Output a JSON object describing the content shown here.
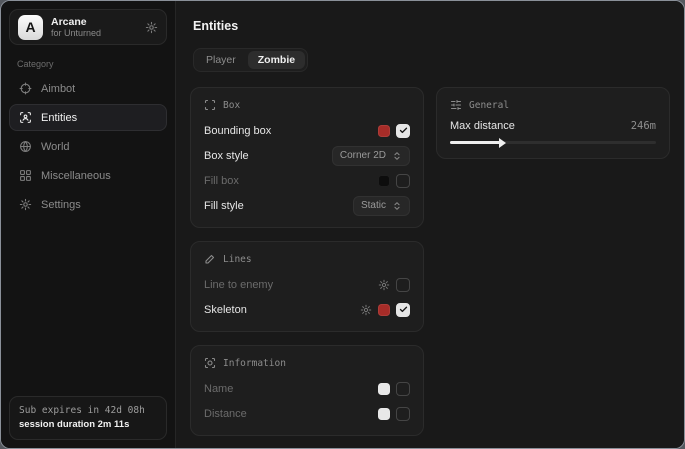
{
  "app": {
    "name": "Arcane",
    "subtitle": "for Unturned",
    "logo_letter": "A"
  },
  "sidebar": {
    "category_label": "Category",
    "items": [
      {
        "label": "Aimbot",
        "icon": "crosshair-icon",
        "active": false
      },
      {
        "label": "Entities",
        "icon": "scan-person-icon",
        "active": true
      },
      {
        "label": "World",
        "icon": "globe-icon",
        "active": false
      },
      {
        "label": "Miscellaneous",
        "icon": "grid-icon",
        "active": false
      },
      {
        "label": "Settings",
        "icon": "gear-icon",
        "active": false
      }
    ],
    "footer": {
      "expiry": "Sub expires in 42d 08h",
      "session": "session duration 2m 11s"
    }
  },
  "main": {
    "title": "Entities",
    "tabs": [
      {
        "label": "Player",
        "active": false
      },
      {
        "label": "Zombie",
        "active": true
      }
    ],
    "cards": {
      "box": {
        "title": "Box",
        "icon": "scan-corners-icon",
        "rows": [
          {
            "label": "Bounding box",
            "swatch": "#a62c28",
            "checked": true,
            "enabled": true
          },
          {
            "label": "Box style",
            "dropdown": "Corner 2D",
            "enabled": true
          },
          {
            "label": "Fill box",
            "swatch": "#0d0d0d",
            "checked": false,
            "enabled": false
          },
          {
            "label": "Fill style",
            "dropdown": "Static",
            "enabled": true
          }
        ]
      },
      "lines": {
        "title": "Lines",
        "icon": "pencil-icon",
        "rows": [
          {
            "label": "Line to enemy",
            "checked": false,
            "enabled": false
          },
          {
            "label": "Skeleton",
            "swatch": "#a62c28",
            "checked": true,
            "enabled": true
          }
        ]
      },
      "information": {
        "title": "Information",
        "icon": "info-scan-icon",
        "rows": [
          {
            "label": "Name",
            "swatch": "#e8e8e8",
            "checked": false,
            "enabled": false
          },
          {
            "label": "Distance",
            "swatch": "#e8e8e8",
            "checked": false,
            "enabled": false
          }
        ]
      },
      "general": {
        "title": "General",
        "icon": "sliders-icon",
        "slider": {
          "label": "Max distance",
          "value": "246m",
          "percent": 24.6
        }
      }
    }
  },
  "colors": {
    "accent_red": "#a62c28",
    "checkbox_checked": "#e6e6e6",
    "card_bg": "#1e1e1e",
    "sidebar_bg": "#131313",
    "main_bg": "#191919"
  }
}
